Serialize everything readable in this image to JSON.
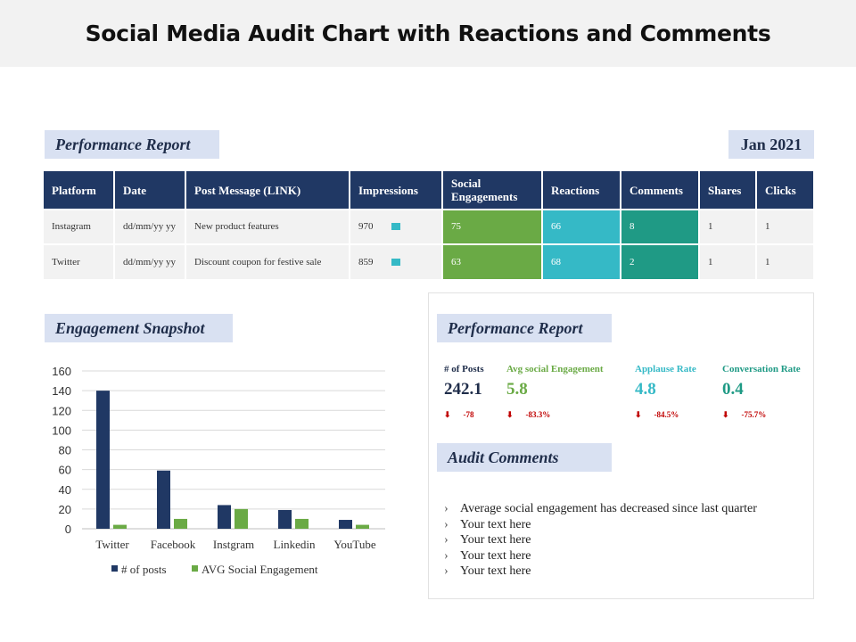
{
  "page": {
    "title": "Social Media Audit Chart with Reactions and Comments",
    "performance_report_label": "Performance Report",
    "date": "Jan 2021",
    "engagement_snapshot_label": "Engagement Snapshot",
    "performance_report2_label": "Performance Report",
    "audit_comments_label": "Audit Comments"
  },
  "table": {
    "headers": [
      "Platform",
      "Date",
      "Post Message  (LINK)",
      "Impressions",
      "Social Engagements",
      "Reactions",
      "Comments",
      "Shares",
      "Clicks"
    ],
    "rows": [
      {
        "platform": "Instagram",
        "date": "dd/mm/yy yy",
        "message": "New product features",
        "impressions": "970",
        "engagements": "75",
        "reactions": "66",
        "comments": "8",
        "shares": "1",
        "clicks": "1"
      },
      {
        "platform": "Twitter",
        "date": "dd/mm/yy yy",
        "message": "Discount coupon for festive sale",
        "impressions": "859",
        "engagements": "63",
        "reactions": "68",
        "comments": "2",
        "shares": "1",
        "clicks": "1"
      }
    ]
  },
  "metrics": [
    {
      "label": "# of Posts",
      "value": "242.1",
      "arrow": "⬇",
      "change": "-78",
      "color": "#1f2d4a"
    },
    {
      "label": "Avg social Engagement",
      "value": "5.8",
      "arrow": "⬇",
      "change": "-83.3%",
      "color": "#6aaa45"
    },
    {
      "label": "Applause Rate",
      "value": "4.8",
      "arrow": "⬇",
      "change": "-84.5%",
      "color": "#35b9c6"
    },
    {
      "label": "Conversation Rate",
      "value": "0.4",
      "arrow": "⬇",
      "change": "-75.7%",
      "color": "#1f9a85"
    }
  ],
  "comments": [
    "Average social engagement has decreased since last quarter",
    "Your text here",
    "Your text here",
    "Your text here",
    "Your text here"
  ],
  "chart_data": {
    "type": "bar",
    "title": "",
    "xlabel": "",
    "ylabel": "",
    "categories": [
      "Twitter",
      "Facebook",
      "Instgram",
      "Linkedin",
      "YouTube"
    ],
    "series": [
      {
        "name": "# of posts",
        "values": [
          140,
          59,
          24,
          19,
          9
        ],
        "color": "#203864"
      },
      {
        "name": "AVG Social Engagement",
        "values": [
          4,
          10,
          20,
          10,
          4
        ],
        "color": "#6aaa45"
      }
    ],
    "ylim": [
      0,
      160
    ],
    "yticks": [
      0,
      20,
      40,
      60,
      80,
      100,
      120,
      140,
      160
    ],
    "grid": true,
    "legend": "bottom"
  }
}
